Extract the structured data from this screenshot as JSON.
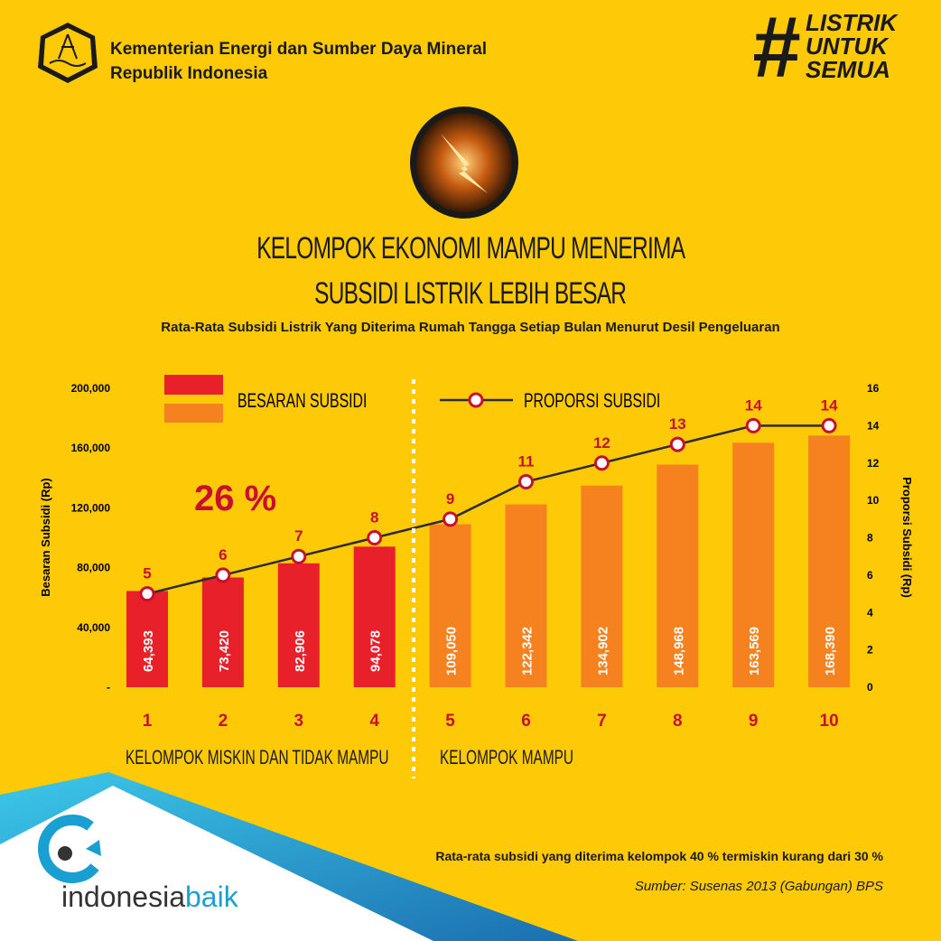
{
  "header": {
    "ministry_line1": "Kementerian Energi dan Sumber Daya Mineral",
    "ministry_line2": "Republik Indonesia",
    "hashtag": "#LISTRIK UNTUK SEMUA",
    "hashtag_lines": [
      "LISTRIK",
      "UNTUK",
      "SEMUA"
    ]
  },
  "title_line1": "KELOMPOK EKONOMI MAMPU MENERIMA",
  "title_line2": "SUBSIDI LISTRIK LEBIH BESAR",
  "subtitle": "Rata-Rata Subsidi Listrik Yang Diterima Rumah Tangga Setiap Bulan Menurut Desil Pengeluaran",
  "chart_data": {
    "type": "bar+line",
    "categories": [
      "1",
      "2",
      "3",
      "4",
      "5",
      "6",
      "7",
      "8",
      "9",
      "10"
    ],
    "series": [
      {
        "name": "BESARAN SUBSIDI",
        "type": "bar",
        "axis": "left",
        "values": [
          64393,
          73420,
          82906,
          94078,
          109050,
          122342,
          134902,
          148968,
          163569,
          168390
        ],
        "labels": [
          "64,393",
          "73,420",
          "82,906",
          "94,078",
          "109,050",
          "122,342",
          "134,902",
          "148,968",
          "163,569",
          "168,390"
        ]
      },
      {
        "name": "PROPORSI SUBSIDI",
        "type": "line",
        "axis": "right",
        "values": [
          5,
          6,
          7,
          8,
          9,
          11,
          12,
          13,
          14,
          14
        ]
      }
    ],
    "ylabel": "Besaran Subsidi (Rp)",
    "ylim": [
      0,
      200000
    ],
    "yticks": [
      "-",
      "40,000",
      "80,000",
      "120,000",
      "160,000",
      "200,000"
    ],
    "y2label": "Proporsi Subsidi (Rp)",
    "y2lim": [
      0,
      16
    ],
    "y2ticks": [
      "0",
      "2",
      "4",
      "6",
      "8",
      "10",
      "12",
      "14",
      "16"
    ],
    "annotation": "26 %",
    "groups": [
      "KELOMPOK MISKIN DAN TIDAK MAMPU",
      "KELOMPOK MAMPU"
    ],
    "colors": {
      "poor": "#e8202a",
      "rich": "#f5821f",
      "line": "#2b2b2b",
      "label": "#c8102e"
    },
    "legend": "top"
  },
  "footer": {
    "note": "Rata-rata subsidi yang diterima kelompok 40 % termiskin kurang dari 30 %",
    "source": "Sumber: Susenas 2013 (Gabungan) BPS",
    "brand1": "indonesia",
    "brand2": "baik"
  }
}
